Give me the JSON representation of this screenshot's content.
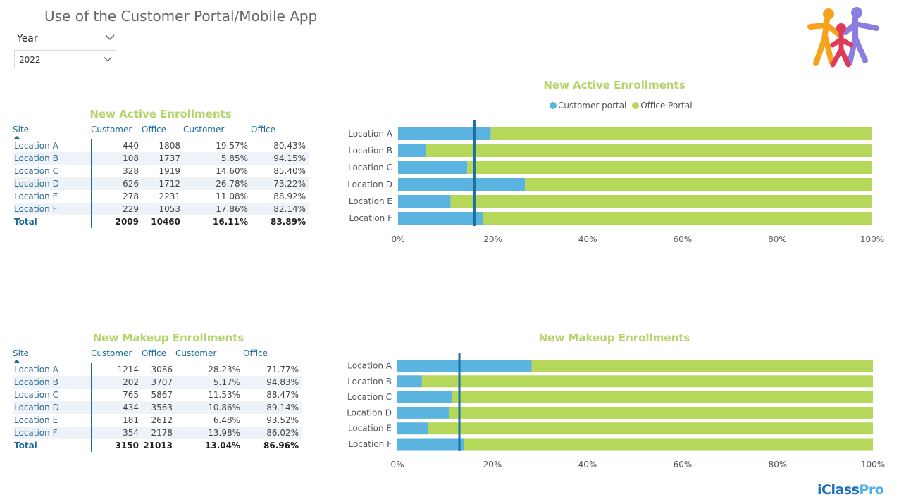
{
  "header": {
    "title": "Use of the Customer Portal/Mobile App"
  },
  "filter": {
    "label": "Year",
    "value": "2022"
  },
  "colors": {
    "customer": "#5bb4e0",
    "office": "#b5d85a",
    "reference_line": "#1a6fa0",
    "accent": "#b5d36b"
  },
  "brand": {
    "main": "iClass",
    "suffix": "Pro"
  },
  "legend": {
    "customer": "Customer portal",
    "office": "Office Portal"
  },
  "active_table": {
    "title": "New Active Enrollments",
    "headers": [
      "Site",
      "Customer",
      "Office",
      "Customer",
      "Office"
    ],
    "rows": [
      [
        "Location A",
        "440",
        "1808",
        "19.57%",
        "80.43%"
      ],
      [
        "Location B",
        "108",
        "1737",
        "5.85%",
        "94.15%"
      ],
      [
        "Location C",
        "328",
        "1919",
        "14.60%",
        "85.40%"
      ],
      [
        "Location D",
        "626",
        "1712",
        "26.78%",
        "73.22%"
      ],
      [
        "Location E",
        "278",
        "2231",
        "11.08%",
        "88.92%"
      ],
      [
        "Location F",
        "229",
        "1053",
        "17.86%",
        "82.14%"
      ]
    ],
    "total": [
      "Total",
      "2009",
      "10460",
      "16.11%",
      "83.89%"
    ]
  },
  "makeup_table": {
    "title": "New Makeup Enrollments",
    "headers": [
      "Site",
      "Customer",
      "Office",
      "Customer",
      "Office"
    ],
    "rows": [
      [
        "Location A",
        "1214",
        "3086",
        "28.23%",
        "71.77%"
      ],
      [
        "Location B",
        "202",
        "3707",
        "5.17%",
        "94.83%"
      ],
      [
        "Location C",
        "765",
        "5867",
        "11.53%",
        "88.47%"
      ],
      [
        "Location D",
        "434",
        "3563",
        "10.86%",
        "89.14%"
      ],
      [
        "Location E",
        "181",
        "2612",
        "6.48%",
        "93.52%"
      ],
      [
        "Location F",
        "354",
        "2178",
        "13.98%",
        "86.02%"
      ]
    ],
    "total": [
      "Total",
      "3150",
      "21013",
      "13.04%",
      "86.96%"
    ]
  },
  "chart_data": [
    {
      "type": "bar",
      "orientation": "horizontal",
      "stacked": "100%",
      "title": "New Active Enrollments",
      "categories": [
        "Location A",
        "Location B",
        "Location C",
        "Location D",
        "Location E",
        "Location F"
      ],
      "series": [
        {
          "name": "Customer portal",
          "values": [
            19.57,
            5.85,
            14.6,
            26.78,
            11.08,
            17.86
          ]
        },
        {
          "name": "Office Portal",
          "values": [
            80.43,
            94.15,
            85.4,
            73.22,
            88.92,
            82.14
          ]
        }
      ],
      "reference_line": 16.11,
      "xlim": [
        0,
        100
      ],
      "xticks": [
        "0%",
        "20%",
        "40%",
        "60%",
        "80%",
        "100%"
      ],
      "legend": "top-center"
    },
    {
      "type": "bar",
      "orientation": "horizontal",
      "stacked": "100%",
      "title": "New Makeup Enrollments",
      "categories": [
        "Location A",
        "Location B",
        "Location C",
        "Location D",
        "Location E",
        "Location F"
      ],
      "series": [
        {
          "name": "Customer portal",
          "values": [
            28.23,
            5.17,
            11.53,
            10.86,
            6.48,
            13.98
          ]
        },
        {
          "name": "Office Portal",
          "values": [
            71.77,
            94.83,
            88.47,
            89.14,
            93.52,
            86.02
          ]
        }
      ],
      "reference_line": 13.04,
      "xlim": [
        0,
        100
      ],
      "xticks": [
        "0%",
        "20%",
        "40%",
        "60%",
        "80%",
        "100%"
      ]
    }
  ]
}
